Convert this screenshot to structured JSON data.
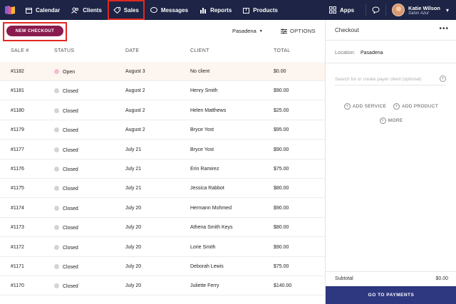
{
  "nav": {
    "items": [
      {
        "label": "Calendar",
        "icon": "calendar-icon"
      },
      {
        "label": "Clients",
        "icon": "users-icon"
      },
      {
        "label": "Sales",
        "icon": "tag-icon"
      },
      {
        "label": "Messages",
        "icon": "chat-icon"
      },
      {
        "label": "Reports",
        "icon": "bar-chart-icon"
      },
      {
        "label": "Products",
        "icon": "box-icon"
      }
    ],
    "apps_label": "Apps",
    "user_name": "Katie Wilson",
    "user_business": "Salon Azul"
  },
  "toolbar": {
    "new_checkout_label": "NEW CHECKOUT",
    "location": "Pasadena",
    "options_label": "OPTIONS"
  },
  "table": {
    "headers": [
      "SALE #",
      "STATUS",
      "DATE",
      "CLIENT",
      "TOTAL"
    ],
    "rows": [
      {
        "sale": "#1182",
        "status": "Open",
        "date": "August 3",
        "client": "No client",
        "total": "$0.00"
      },
      {
        "sale": "#1181",
        "status": "Closed",
        "date": "August 2",
        "client": "Henry Smith",
        "total": "$90.00"
      },
      {
        "sale": "#1180",
        "status": "Closed",
        "date": "August 2",
        "client": "Helen Matthews",
        "total": "$25.00"
      },
      {
        "sale": "#1179",
        "status": "Closed",
        "date": "August 2",
        "client": "Bryce Yost",
        "total": "$95.00"
      },
      {
        "sale": "#1177",
        "status": "Closed",
        "date": "July 21",
        "client": "Bryce Yost",
        "total": "$90.00"
      },
      {
        "sale": "#1176",
        "status": "Closed",
        "date": "July 21",
        "client": "Erin Ramirez",
        "total": "$75.00"
      },
      {
        "sale": "#1175",
        "status": "Closed",
        "date": "July 21",
        "client": "Jessica Rabbot",
        "total": "$80.00"
      },
      {
        "sale": "#1174",
        "status": "Closed",
        "date": "July 20",
        "client": "Hermann Mohmed",
        "total": "$90.00"
      },
      {
        "sale": "#1173",
        "status": "Closed",
        "date": "July 20",
        "client": "Athena Smith Keys",
        "total": "$80.00"
      },
      {
        "sale": "#1172",
        "status": "Closed",
        "date": "July 20",
        "client": "Lorie Smith",
        "total": "$90.00"
      },
      {
        "sale": "#1171",
        "status": "Closed",
        "date": "July 20",
        "client": "Deborah Lewis",
        "total": "$75.00"
      },
      {
        "sale": "#1170",
        "status": "Closed",
        "date": "July 20",
        "client": "Juliette Ferry",
        "total": "$140.00"
      },
      {
        "sale": "",
        "status": "",
        "date": "",
        "client": "",
        "total": ""
      }
    ]
  },
  "checkout": {
    "title": "Checkout",
    "more": "•••",
    "location_label": "Location:",
    "location_value": "Pasadena",
    "search_placeholder": "Search for or create payer client (optional)",
    "add_service": "ADD SERVICE",
    "add_product": "ADD PRODUCT",
    "more_label": "MORE",
    "subtotal_label": "Subtotal",
    "subtotal_value": "$0.00",
    "pay_label": "GO TO PAYMENTS"
  },
  "colors": {
    "nav_bg": "#1d2445",
    "accent_button": "#8a1b4e",
    "pay_button": "#2e3880",
    "open_row_bg": "#fdf5ef",
    "open_dot": "#f3bcd1",
    "closed_dot": "#d4d4d4",
    "highlight_outline": "#e0281f"
  }
}
